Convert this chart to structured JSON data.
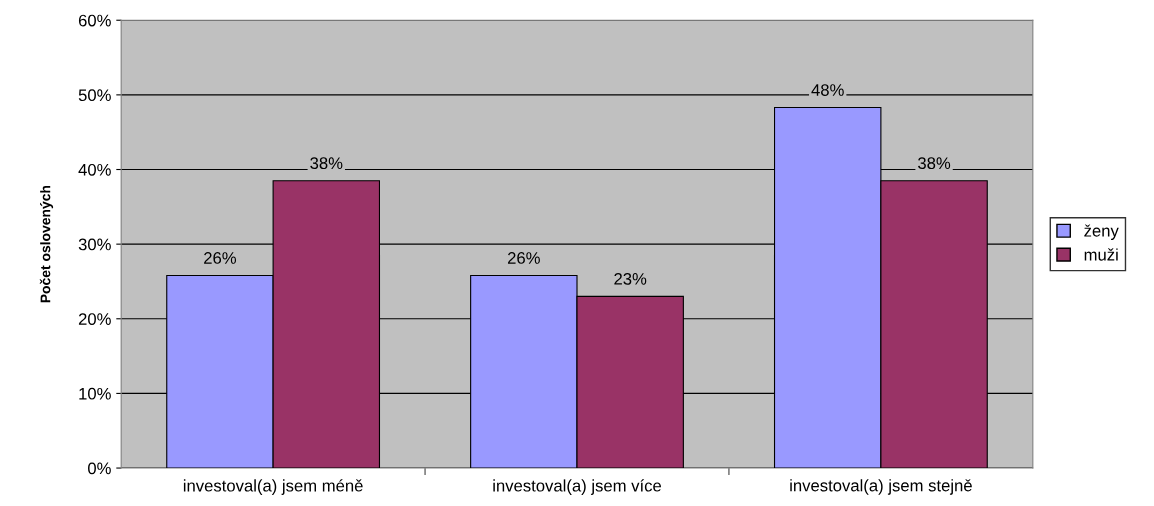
{
  "chart_data": {
    "type": "bar",
    "ylabel": "Počet oslovených",
    "categories": [
      "investoval(a) jsem méně",
      "investoval(a) jsem více",
      "investoval(a) jsem stejně"
    ],
    "series": [
      {
        "name": "ženy",
        "color": "#9999ff",
        "values": [
          25.8,
          25.8,
          48.3
        ],
        "value_labels": [
          "26%",
          "26%",
          "48%"
        ]
      },
      {
        "name": "muži",
        "color": "#993366",
        "values": [
          38.5,
          23,
          38.5
        ],
        "value_labels": [
          "38%",
          "23%",
          "38%"
        ]
      }
    ],
    "ylim": [
      0,
      60
    ],
    "yticks": [
      {
        "value": 0,
        "label": "0%"
      },
      {
        "value": 10,
        "label": "10%"
      },
      {
        "value": 20,
        "label": "20%"
      },
      {
        "value": 30,
        "label": "30%"
      },
      {
        "value": 40,
        "label": "40%"
      },
      {
        "value": 50,
        "label": "50%"
      },
      {
        "value": 60,
        "label": "60%"
      }
    ],
    "grid": "y",
    "legend": "right"
  }
}
